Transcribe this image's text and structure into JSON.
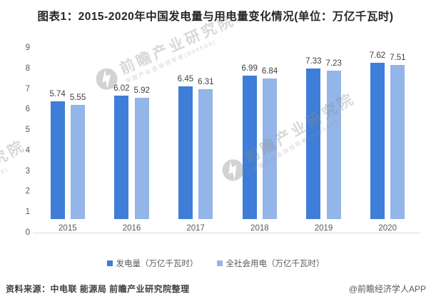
{
  "title": "图表1：2015-2020年中国发电量与用电量变化情况(单位：万亿千瓦时)",
  "chart_data": {
    "type": "bar",
    "categories": [
      "2015",
      "2016",
      "2017",
      "2018",
      "2019",
      "2020"
    ],
    "series": [
      {
        "name": "发电量（万亿千瓦时）",
        "color": "#3E7DD8",
        "values": [
          5.74,
          6.02,
          6.45,
          6.99,
          7.33,
          7.62
        ]
      },
      {
        "name": "全社会用电（万亿千瓦时）",
        "color": "#93B5E8",
        "values": [
          5.55,
          5.92,
          6.31,
          6.84,
          7.23,
          7.51
        ]
      }
    ],
    "ylim": [
      0,
      9
    ],
    "yticks": [
      0,
      1,
      2,
      3,
      4,
      5,
      6,
      7,
      8,
      9
    ],
    "grid": false,
    "legend_position": "bottom",
    "value_labels": true
  },
  "footer": {
    "source": "资料来源：中电联 能源局 前瞻产业研究院整理",
    "credit": "@前瞻经济学人APP"
  },
  "watermark": {
    "brand_text": "前瞻产业研究院",
    "tagline": "中国产业咨询领导者(839599)"
  },
  "colors": {
    "series1": "#3E7DD8",
    "series2": "#93B5E8",
    "axis_line": "#D9D9D9",
    "title_text": "#262626",
    "value_label_text": "#404040",
    "axis_text": "#595959"
  }
}
